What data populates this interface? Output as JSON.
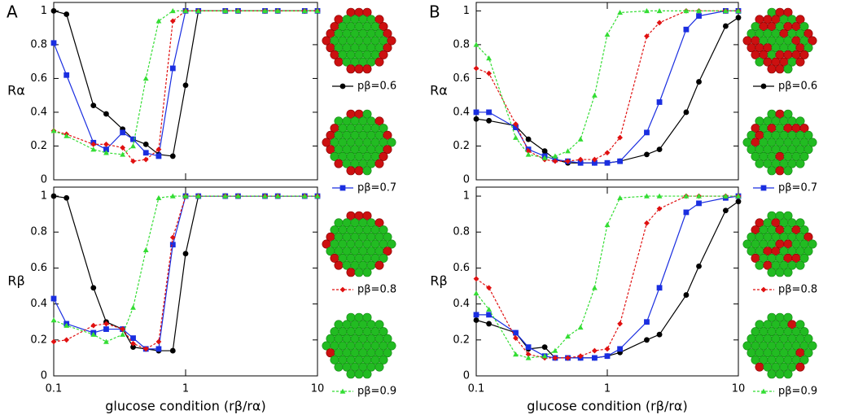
{
  "chart_data": [
    {
      "type": "line",
      "panel": "A",
      "xlog": true,
      "ylabel": "Rα",
      "x": [
        0.1,
        0.125,
        0.2,
        0.25,
        0.333,
        0.4,
        0.5,
        0.625,
        0.8,
        1,
        1.25,
        2,
        2.5,
        4,
        5,
        8,
        10
      ],
      "xlim": [
        0.1,
        10
      ],
      "xticks": [
        0.1,
        1,
        10
      ],
      "ylim": [
        0,
        1.05
      ],
      "yticks": [
        0,
        0.2,
        0.4,
        0.6,
        0.8,
        1
      ],
      "series": [
        {
          "name": "pβ=0.6",
          "color": "#000000",
          "marker": "circle",
          "dashed": false,
          "values": [
            1.0,
            0.98,
            0.44,
            0.39,
            0.3,
            0.24,
            0.21,
            0.15,
            0.14,
            0.56,
            1,
            1,
            1,
            1,
            1,
            1,
            1
          ]
        },
        {
          "name": "pβ=0.7",
          "color": "#1a2ee0",
          "marker": "square",
          "dashed": false,
          "values": [
            0.81,
            0.62,
            0.22,
            0.18,
            0.28,
            0.24,
            0.16,
            0.14,
            0.66,
            1,
            1,
            1,
            1,
            1,
            1,
            1,
            1
          ]
        },
        {
          "name": "pβ=0.8",
          "color": "#e01010",
          "marker": "diamond",
          "dashed": true,
          "values": [
            0.29,
            0.27,
            0.21,
            0.21,
            0.19,
            0.11,
            0.12,
            0.18,
            0.94,
            1,
            1,
            1,
            1,
            1,
            1,
            1,
            1
          ]
        },
        {
          "name": "pβ=0.9",
          "color": "#33dd33",
          "marker": "triangle",
          "dashed": true,
          "values": [
            0.29,
            0.26,
            0.18,
            0.16,
            0.15,
            0.2,
            0.6,
            0.94,
            1,
            1,
            1,
            1,
            1,
            1,
            1,
            1,
            1
          ]
        }
      ]
    },
    {
      "type": "line",
      "xlog": true,
      "ylabel": "Rβ",
      "xlabel": "glucose condition (rβ/rα)",
      "x": [
        0.1,
        0.125,
        0.2,
        0.25,
        0.333,
        0.4,
        0.5,
        0.625,
        0.8,
        1,
        1.25,
        2,
        2.5,
        4,
        5,
        8,
        10
      ],
      "xlim": [
        0.1,
        10
      ],
      "xticks": [
        0.1,
        1,
        10
      ],
      "ylim": [
        0,
        1.05
      ],
      "yticks": [
        0,
        0.2,
        0.4,
        0.6,
        0.8,
        1
      ],
      "series": [
        {
          "color": "#000000",
          "marker": "circle",
          "dashed": false,
          "values": [
            1.0,
            0.99,
            0.49,
            0.3,
            0.26,
            0.16,
            0.15,
            0.14,
            0.14,
            0.68,
            1,
            1,
            1,
            1,
            1,
            1,
            1
          ]
        },
        {
          "color": "#1a2ee0",
          "marker": "square",
          "dashed": false,
          "values": [
            0.43,
            0.29,
            0.24,
            0.26,
            0.26,
            0.21,
            0.15,
            0.15,
            0.73,
            1,
            1,
            1,
            1,
            1,
            1,
            1,
            1
          ]
        },
        {
          "color": "#e01010",
          "marker": "diamond",
          "dashed": true,
          "values": [
            0.19,
            0.2,
            0.28,
            0.29,
            0.26,
            0.18,
            0.15,
            0.19,
            0.77,
            1,
            1,
            1,
            1,
            1,
            1,
            1,
            1
          ]
        },
        {
          "color": "#33dd33",
          "marker": "triangle",
          "dashed": true,
          "values": [
            0.31,
            0.28,
            0.23,
            0.19,
            0.23,
            0.38,
            0.7,
            0.99,
            1,
            1,
            1,
            1,
            1,
            1,
            1,
            1,
            1
          ]
        }
      ]
    },
    {
      "type": "line",
      "panel": "B",
      "xlog": true,
      "ylabel": "Rα",
      "x": [
        0.1,
        0.125,
        0.2,
        0.25,
        0.333,
        0.4,
        0.5,
        0.625,
        0.8,
        1,
        1.25,
        2,
        2.5,
        4,
        5,
        8,
        10
      ],
      "xlim": [
        0.1,
        10
      ],
      "xticks": [
        0.1,
        1,
        10
      ],
      "ylim": [
        0,
        1.05
      ],
      "yticks": [
        0,
        0.2,
        0.4,
        0.6,
        0.8,
        1
      ],
      "series": [
        {
          "name": "pβ=0.6",
          "color": "#000000",
          "marker": "circle",
          "dashed": false,
          "values": [
            0.36,
            0.35,
            0.32,
            0.24,
            0.17,
            0.12,
            0.1,
            0.1,
            0.1,
            0.1,
            0.11,
            0.15,
            0.18,
            0.4,
            0.58,
            0.91,
            0.96
          ]
        },
        {
          "name": "pβ=0.7",
          "color": "#1a2ee0",
          "marker": "square",
          "dashed": false,
          "values": [
            0.4,
            0.4,
            0.31,
            0.18,
            0.14,
            0.12,
            0.11,
            0.1,
            0.1,
            0.1,
            0.11,
            0.28,
            0.46,
            0.89,
            0.97,
            1,
            1
          ]
        },
        {
          "name": "pβ=0.8",
          "color": "#e01010",
          "marker": "diamond",
          "dashed": true,
          "values": [
            0.66,
            0.63,
            0.33,
            0.17,
            0.12,
            0.11,
            0.11,
            0.12,
            0.12,
            0.16,
            0.25,
            0.85,
            0.93,
            1,
            1,
            1,
            1
          ]
        },
        {
          "name": "pβ=0.9",
          "color": "#33dd33",
          "marker": "triangle",
          "dashed": true,
          "values": [
            0.8,
            0.72,
            0.25,
            0.15,
            0.13,
            0.14,
            0.17,
            0.24,
            0.5,
            0.86,
            0.99,
            1,
            1,
            1,
            1,
            1,
            1
          ]
        }
      ]
    },
    {
      "type": "line",
      "xlog": true,
      "ylabel": "Rβ",
      "xlabel": "glucose condition (rβ/rα)",
      "x": [
        0.1,
        0.125,
        0.2,
        0.25,
        0.333,
        0.4,
        0.5,
        0.625,
        0.8,
        1,
        1.25,
        2,
        2.5,
        4,
        5,
        8,
        10
      ],
      "xlim": [
        0.1,
        10
      ],
      "xticks": [
        0.1,
        1,
        10
      ],
      "ylim": [
        0,
        1.05
      ],
      "yticks": [
        0,
        0.2,
        0.4,
        0.6,
        0.8,
        1
      ],
      "series": [
        {
          "color": "#000000",
          "marker": "circle",
          "dashed": false,
          "values": [
            0.31,
            0.29,
            0.24,
            0.15,
            0.16,
            0.1,
            0.1,
            0.1,
            0.1,
            0.11,
            0.13,
            0.2,
            0.23,
            0.45,
            0.61,
            0.92,
            0.97
          ]
        },
        {
          "color": "#1a2ee0",
          "marker": "square",
          "dashed": false,
          "values": [
            0.34,
            0.34,
            0.24,
            0.16,
            0.11,
            0.1,
            0.1,
            0.1,
            0.1,
            0.11,
            0.15,
            0.3,
            0.49,
            0.91,
            0.96,
            0.99,
            1
          ]
        },
        {
          "color": "#e01010",
          "marker": "diamond",
          "dashed": true,
          "values": [
            0.54,
            0.49,
            0.21,
            0.12,
            0.1,
            0.1,
            0.1,
            0.11,
            0.14,
            0.15,
            0.29,
            0.85,
            0.93,
            1,
            1,
            1,
            1
          ]
        },
        {
          "color": "#33dd33",
          "marker": "triangle",
          "dashed": true,
          "values": [
            0.46,
            0.37,
            0.12,
            0.1,
            0.11,
            0.14,
            0.22,
            0.27,
            0.49,
            0.84,
            0.99,
            1,
            1,
            1,
            1,
            1,
            1
          ]
        }
      ]
    }
  ]
}
